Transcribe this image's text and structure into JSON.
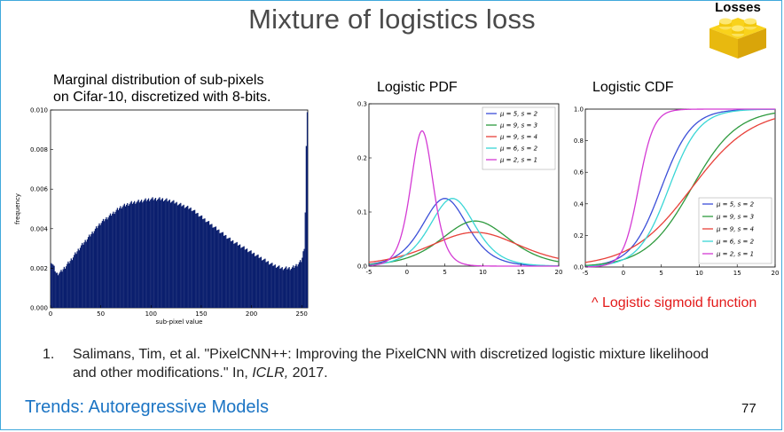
{
  "slide": {
    "title": "Mixture of logistics loss",
    "badge_label": "Losses",
    "footer": "Trends: Autoregressive Models",
    "page_number": "77",
    "sigmoid_note": "^ Logistic sigmoid function",
    "colors": {
      "footer": "#1b74c4",
      "note": "#e31a1a",
      "badge": "#f6c713"
    }
  },
  "captions": {
    "histogram_line1": "Marginal distribution of sub-pixels",
    "histogram_line2": "on Cifar-10, discretized with 8-bits.",
    "pdf": "Logistic PDF",
    "cdf": "Logistic CDF"
  },
  "reference": {
    "number": "1.",
    "text_before": "Salimans, Tim, et al. \"PixelCNN++: Improving the PixelCNN with discretized logistic mixture likelihood and other modifications.\" In, ",
    "venue": "ICLR,",
    "text_after": " 2017."
  },
  "chart_data": [
    {
      "type": "bar",
      "xlabel": "sub-pixel value",
      "ylabel": "frequency",
      "xlim": [
        0,
        256
      ],
      "ylim": [
        0,
        0.01
      ],
      "xticks": [
        "0",
        "50",
        "100",
        "150",
        "200",
        "250"
      ],
      "yticks": [
        "0.000",
        "0.002",
        "0.004",
        "0.006",
        "0.008",
        "0.010"
      ],
      "color": "#0b1f6e",
      "series_points": [
        [
          0,
          0.0024
        ],
        [
          3,
          0.0021
        ],
        [
          6,
          0.0017
        ],
        [
          10,
          0.0018
        ],
        [
          20,
          0.0024
        ],
        [
          30,
          0.0031
        ],
        [
          40,
          0.0037
        ],
        [
          50,
          0.0043
        ],
        [
          60,
          0.0047
        ],
        [
          70,
          0.0051
        ],
        [
          80,
          0.0053
        ],
        [
          90,
          0.0054
        ],
        [
          100,
          0.0055
        ],
        [
          110,
          0.0055
        ],
        [
          120,
          0.0054
        ],
        [
          130,
          0.0052
        ],
        [
          140,
          0.005
        ],
        [
          150,
          0.0046
        ],
        [
          160,
          0.0042
        ],
        [
          170,
          0.0038
        ],
        [
          180,
          0.0034
        ],
        [
          190,
          0.0031
        ],
        [
          200,
          0.0028
        ],
        [
          210,
          0.0025
        ],
        [
          220,
          0.0022
        ],
        [
          230,
          0.002
        ],
        [
          240,
          0.002
        ],
        [
          246,
          0.0022
        ],
        [
          250,
          0.0024
        ],
        [
          253,
          0.0032
        ],
        [
          255,
          0.0098
        ]
      ]
    },
    {
      "type": "line",
      "xlim": [
        -5,
        20
      ],
      "ylim": [
        0,
        0.3
      ],
      "xticks": [
        "-5",
        "0",
        "5",
        "10",
        "15",
        "20"
      ],
      "yticks": [
        "0.0",
        "0.1",
        "0.2",
        "0.3"
      ],
      "function": "logistic_pdf",
      "legend_position": "top-right",
      "series": [
        {
          "label": "μ = 5,  s = 2",
          "mu": 5,
          "s": 2,
          "color": "#3b4fd8"
        },
        {
          "label": "μ = 9,  s = 3",
          "mu": 9,
          "s": 3,
          "color": "#2e9a3e"
        },
        {
          "label": "μ = 9,  s = 4",
          "mu": 9,
          "s": 4,
          "color": "#e8413a"
        },
        {
          "label": "μ = 6,  s = 2",
          "mu": 6,
          "s": 2,
          "color": "#3ad6d6"
        },
        {
          "label": "μ = 2,  s = 1",
          "mu": 2,
          "s": 1,
          "color": "#d43ad4"
        }
      ]
    },
    {
      "type": "line",
      "xlim": [
        -5,
        20
      ],
      "ylim": [
        0,
        1.0
      ],
      "xticks": [
        "-5",
        "0",
        "5",
        "10",
        "15",
        "20"
      ],
      "yticks": [
        "0.0",
        "0.2",
        "0.4",
        "0.6",
        "0.8",
        "1.0"
      ],
      "function": "logistic_cdf",
      "legend_position": "bottom-right",
      "series": [
        {
          "label": "μ = 5,  s = 2",
          "mu": 5,
          "s": 2,
          "color": "#3b4fd8"
        },
        {
          "label": "μ = 9,  s = 3",
          "mu": 9,
          "s": 3,
          "color": "#2e9a3e"
        },
        {
          "label": "μ = 9,  s = 4",
          "mu": 9,
          "s": 4,
          "color": "#e8413a"
        },
        {
          "label": "μ = 6,  s = 2",
          "mu": 6,
          "s": 2,
          "color": "#3ad6d6"
        },
        {
          "label": "μ = 2,  s = 1",
          "mu": 2,
          "s": 1,
          "color": "#d43ad4"
        }
      ]
    }
  ]
}
